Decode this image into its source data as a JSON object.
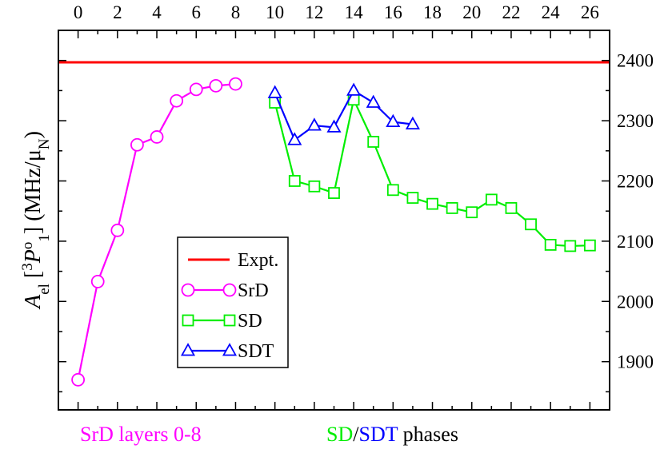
{
  "chart_data": {
    "type": "line",
    "x_range": [
      -1,
      27
    ],
    "y_range": [
      1820,
      2450
    ],
    "xticks": [
      0,
      2,
      4,
      6,
      8,
      10,
      12,
      14,
      16,
      18,
      20,
      22,
      24,
      26
    ],
    "yticks": [
      1900,
      2000,
      2100,
      2200,
      2300,
      2400
    ],
    "ylabel": {
      "main": "A",
      "sub1": "el",
      "open": " [",
      "sup_left": "3",
      "term": "P",
      "sup": "o",
      "sub2": "1",
      "close": "]",
      "units": " (MHz/μ",
      "units_sub": "N",
      "units_close": ")"
    },
    "expt_value": 2397,
    "series": [
      {
        "name": "SrD",
        "color": "#ff00ff",
        "marker": "circle",
        "x": [
          0,
          1,
          2,
          3,
          4,
          5,
          6,
          7,
          8
        ],
        "y": [
          1870,
          2033,
          2118,
          2260,
          2273,
          2333,
          2352,
          2358,
          2361
        ]
      },
      {
        "name": "SD",
        "color": "#00ee00",
        "marker": "square",
        "x": [
          10,
          11,
          12,
          13,
          14,
          15,
          16,
          17,
          18,
          19,
          20,
          21,
          22,
          23,
          24,
          25,
          26
        ],
        "y": [
          2330,
          2200,
          2191,
          2180,
          2335,
          2265,
          2185,
          2172,
          2162,
          2155,
          2148,
          2169,
          2155,
          2128,
          2094,
          2092,
          2093
        ]
      },
      {
        "name": "SDT",
        "color": "#0000ff",
        "marker": "triangle",
        "x": [
          10,
          11,
          12,
          13,
          14,
          15,
          16,
          17
        ],
        "y": [
          2346,
          2268,
          2292,
          2289,
          2350,
          2330,
          2298,
          2294
        ]
      }
    ],
    "legend": [
      {
        "label": "Expt.",
        "color": "#ff0000",
        "marker": "none"
      },
      {
        "label": "SrD",
        "color": "#ff00ff",
        "marker": "circle"
      },
      {
        "label": "SD",
        "color": "#00ee00",
        "marker": "square"
      },
      {
        "label": "SDT",
        "color": "#0000ff",
        "marker": "triangle"
      }
    ],
    "bottom_captions": {
      "left": {
        "text": "SrD layers 0-8",
        "color": "#ff00ff"
      },
      "right": {
        "sd": "SD",
        "sd_color": "#00ee00",
        "slash": "/",
        "sdt": "SDT",
        "sdt_color": "#0000ff",
        "rest": " phases"
      }
    }
  }
}
